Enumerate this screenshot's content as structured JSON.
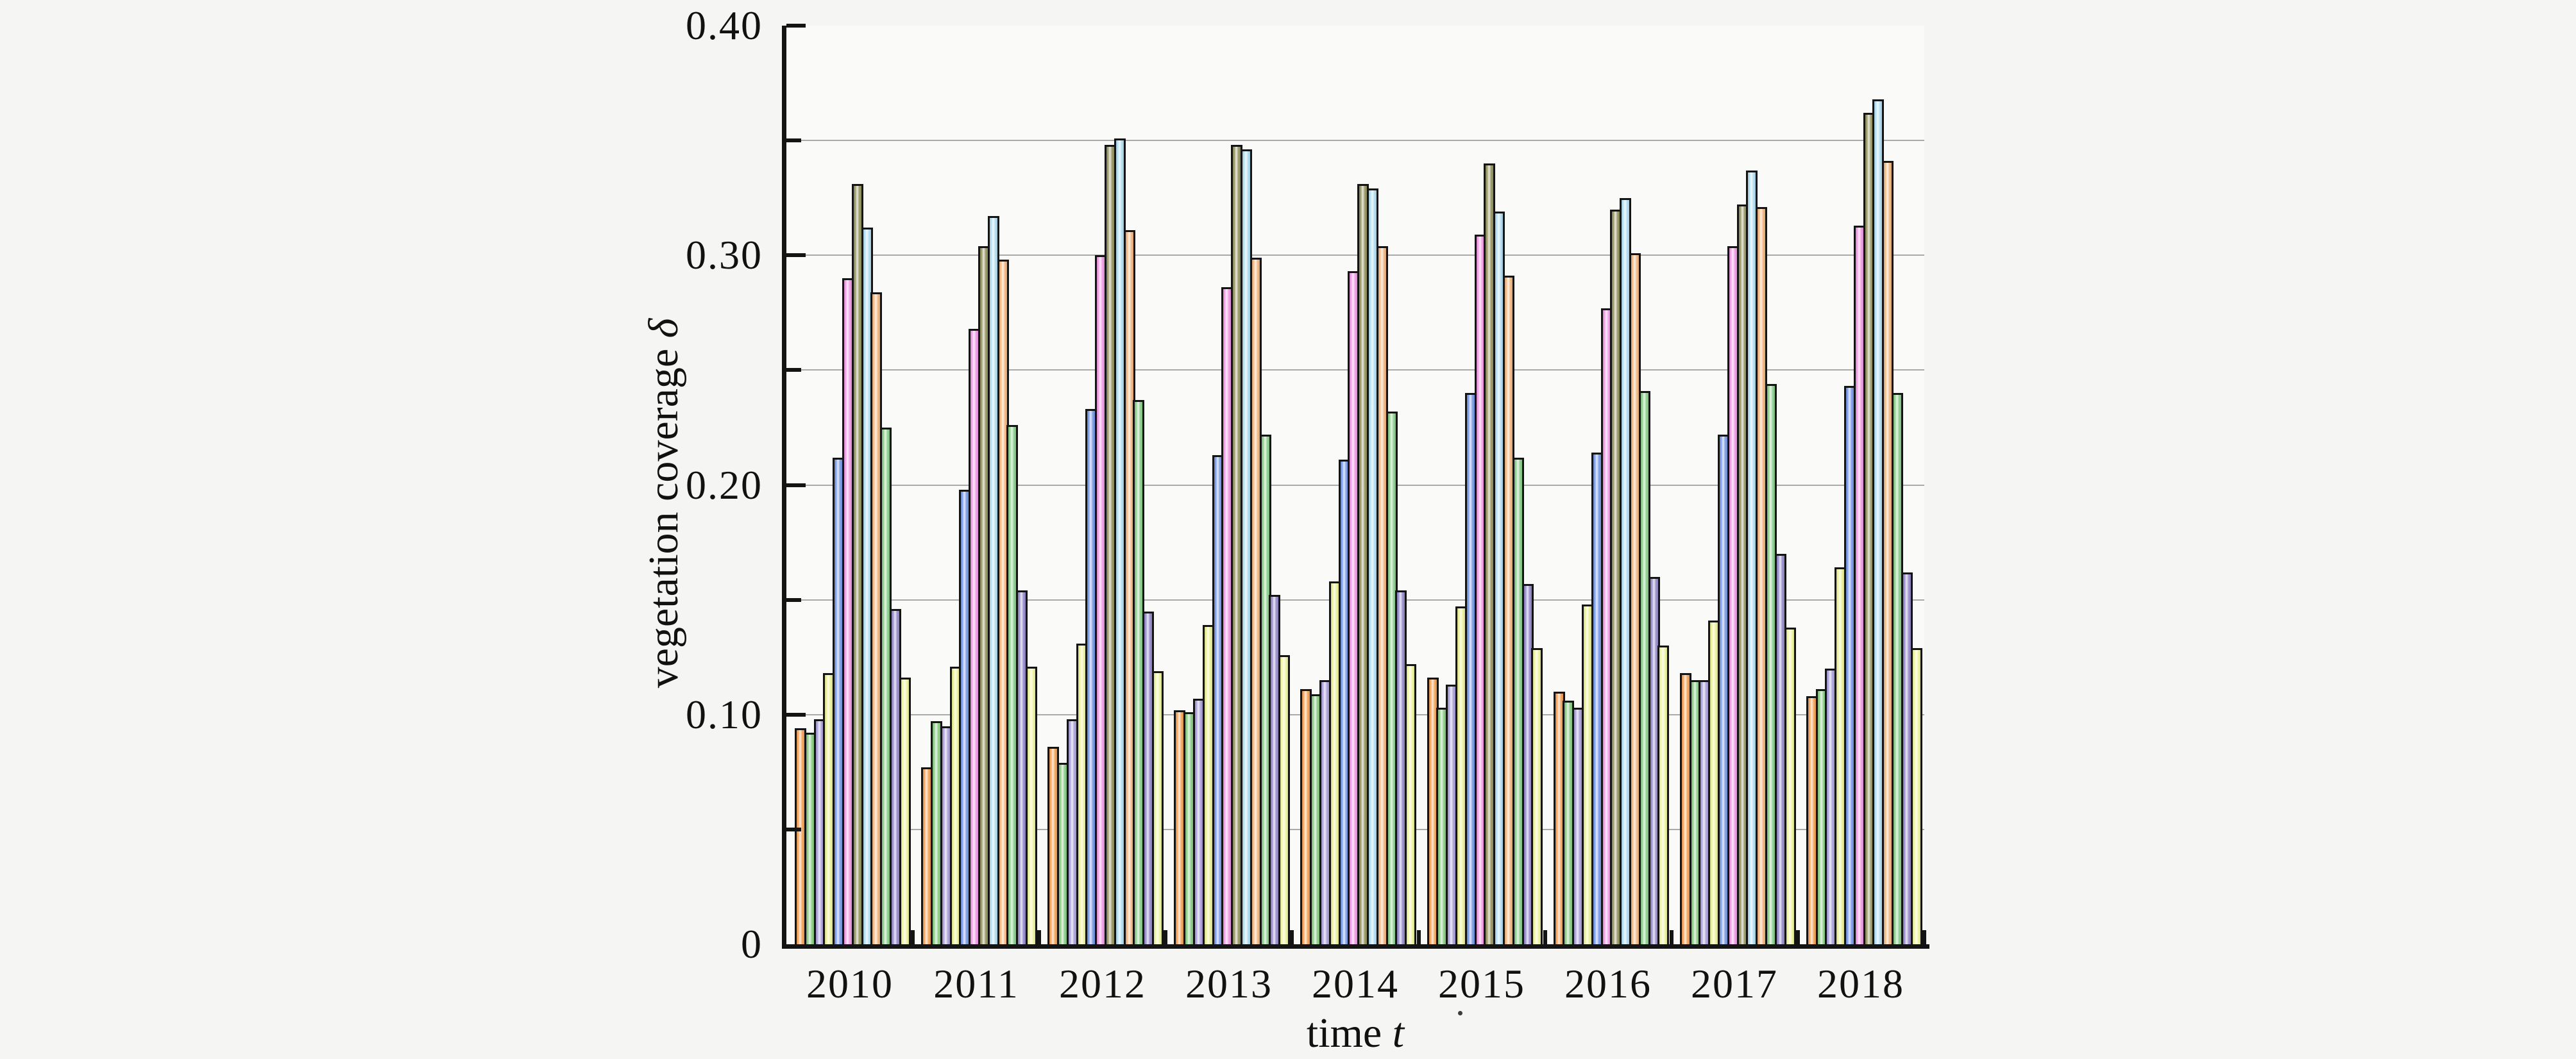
{
  "chart_data": {
    "type": "bar",
    "title": "",
    "xlabel_main": "time",
    "xlabel_symbol": "t",
    "ylabel_main": "vegetation coverage",
    "ylabel_symbol": "δ",
    "ylim": [
      0,
      0.4
    ],
    "grid": "horizontal, every 0.05",
    "legend": "none",
    "bars_per_group": 12,
    "y_major_ticks": [
      {
        "v": 0.0,
        "label": "0"
      },
      {
        "v": 0.1,
        "label": "0.10"
      },
      {
        "v": 0.2,
        "label": "0.20"
      },
      {
        "v": 0.3,
        "label": "0.30"
      },
      {
        "v": 0.4,
        "label": "0.40"
      }
    ],
    "y_minor_step": 0.05,
    "palette": [
      "#F4A65F",
      "#8FCF8B",
      "#AFA5DC",
      "#ECF19B",
      "#7E9EE8",
      "#F09FE6",
      "#9A9A68",
      "#B5DFF2",
      "#F3BA86",
      "#90D190",
      "#9B90CE",
      "#F1F5A4"
    ],
    "categories": [
      "2010",
      "2011",
      "2012",
      "2013",
      "2014",
      "2015",
      "2016",
      "2017",
      "2018"
    ],
    "groups": [
      {
        "label": "2010",
        "values": [
          0.094,
          0.092,
          0.098,
          0.118,
          0.212,
          0.29,
          0.331,
          0.312,
          0.284,
          0.225,
          0.146,
          0.116
        ]
      },
      {
        "label": "2011",
        "values": [
          0.077,
          0.097,
          0.095,
          0.121,
          0.198,
          0.268,
          0.304,
          0.317,
          0.298,
          0.226,
          0.154,
          0.121
        ]
      },
      {
        "label": "2012",
        "values": [
          0.086,
          0.079,
          0.098,
          0.131,
          0.233,
          0.3,
          0.348,
          0.351,
          0.311,
          0.237,
          0.145,
          0.119
        ]
      },
      {
        "label": "2013",
        "values": [
          0.102,
          0.101,
          0.107,
          0.139,
          0.213,
          0.286,
          0.348,
          0.346,
          0.299,
          0.222,
          0.152,
          0.126
        ]
      },
      {
        "label": "2014",
        "values": [
          0.111,
          0.109,
          0.115,
          0.158,
          0.211,
          0.293,
          0.331,
          0.329,
          0.304,
          0.232,
          0.154,
          0.122
        ]
      },
      {
        "label": "2015",
        "values": [
          0.116,
          0.103,
          0.113,
          0.147,
          0.24,
          0.309,
          0.34,
          0.319,
          0.291,
          0.212,
          0.157,
          0.129
        ]
      },
      {
        "label": "2016",
        "values": [
          0.11,
          0.106,
          0.103,
          0.148,
          0.214,
          0.277,
          0.32,
          0.325,
          0.301,
          0.241,
          0.16,
          0.13
        ]
      },
      {
        "label": "2017",
        "values": [
          0.118,
          0.115,
          0.115,
          0.141,
          0.222,
          0.304,
          0.322,
          0.337,
          0.321,
          0.244,
          0.17,
          0.138
        ]
      },
      {
        "label": "2018",
        "values": [
          0.108,
          0.111,
          0.12,
          0.164,
          0.243,
          0.313,
          0.362,
          0.368,
          0.341,
          0.24,
          0.162,
          0.129
        ]
      }
    ],
    "stray_mark": "."
  }
}
